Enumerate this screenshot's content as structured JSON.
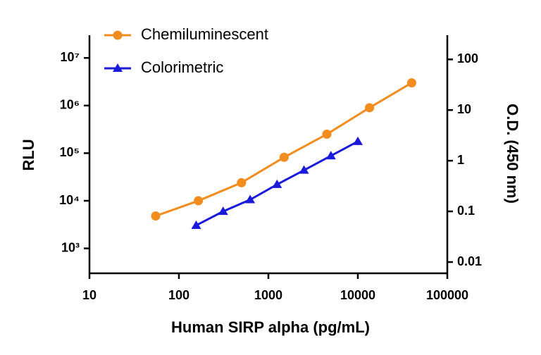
{
  "chart_data": {
    "type": "line",
    "xlabel": "Human SIRP alpha (pg/mL)",
    "ylabel": "RLU",
    "y2label": "O.D. (450 nm)",
    "xscale": "log",
    "yscale": "log",
    "y2scale": "log",
    "xlim": [
      10,
      100000
    ],
    "xticks": [
      10,
      100,
      1000,
      10000,
      100000
    ],
    "ylim": [
      300,
      30000000
    ],
    "yticks": [
      {
        "value": 1000,
        "label": "10³"
      },
      {
        "value": 10000,
        "label": "10⁴"
      },
      {
        "value": 100000,
        "label": "10⁵"
      },
      {
        "value": 1000000,
        "label": "10⁶"
      },
      {
        "value": 10000000,
        "label": "10⁷"
      }
    ],
    "y2lim": [
      0.006,
      300
    ],
    "y2ticks": [
      0.01,
      0.1,
      1,
      10,
      100
    ],
    "legend": "upper left",
    "series": [
      {
        "name": "Chemiluminescent",
        "color": "#f28c1e",
        "marker": "circle",
        "x": [
          55,
          165,
          500,
          1500,
          4500,
          13500,
          40000
        ],
        "values": [
          4800,
          10000,
          24000,
          82000,
          250000,
          900000,
          3000000
        ]
      },
      {
        "name": "Colorimetric",
        "color": "#1a1adb",
        "marker": "triangle",
        "axis": "y2",
        "x": [
          156,
          312,
          625,
          1250,
          2500,
          5000,
          10000
        ],
        "values": [
          0.053,
          0.1,
          0.17,
          0.34,
          0.65,
          1.25,
          2.4
        ]
      }
    ]
  }
}
